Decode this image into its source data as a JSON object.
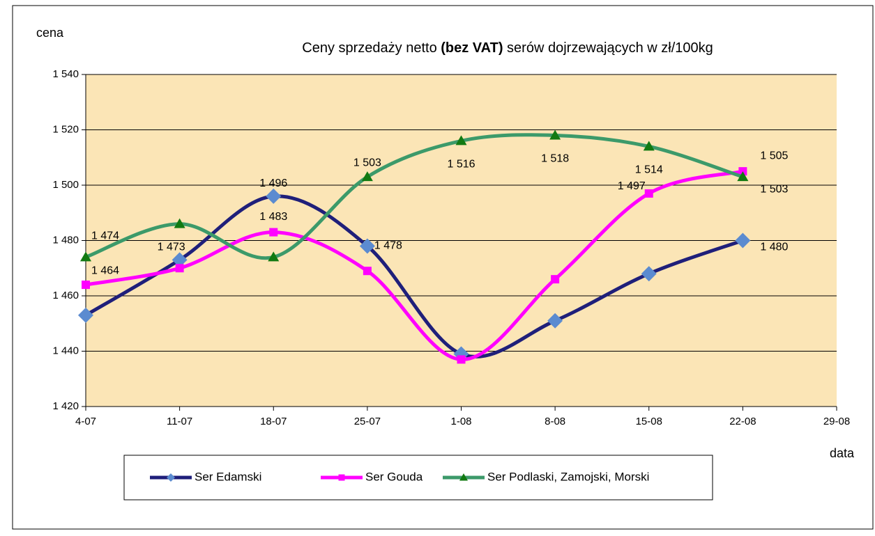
{
  "chart_data": {
    "type": "line",
    "title": [
      "Ceny sprzedaży netto ",
      "(bez VAT)",
      " serów dojrzewających  w zł/100kg"
    ],
    "y_label": "cena",
    "x_label": "data",
    "categories": [
      "4-07",
      "11-07",
      "18-07",
      "25-07",
      "1-08",
      "8-08",
      "15-08",
      "22-08",
      "29-08"
    ],
    "series": [
      {
        "name": "Ser Edamski",
        "color": "#1f1f7a",
        "marker_color": "#5b8bd0",
        "marker": "diamond",
        "values": [
          1453,
          1473,
          1496,
          1478,
          1439,
          1451,
          1468,
          1480,
          null
        ],
        "value_labels": [
          null,
          "1 473",
          "1 496",
          "1 478",
          null,
          null,
          null,
          "1 480",
          null
        ]
      },
      {
        "name": "Ser Gouda",
        "color": "#ff00ff",
        "marker_color": "#ff00ff",
        "marker": "square",
        "values": [
          1464,
          1470,
          1483,
          1469,
          1437,
          1466,
          1497,
          1505,
          null
        ],
        "value_labels": [
          "1 464",
          null,
          "1 483",
          null,
          null,
          null,
          "1 497",
          "1 505",
          null
        ]
      },
      {
        "name": "Ser Podlaski, Zamojski, Morski",
        "color": "#3c9a6a",
        "marker_color": "#127a12",
        "marker": "triangle",
        "values": [
          1474,
          1486,
          1474,
          1503,
          1516,
          1518,
          1514,
          1503,
          null
        ],
        "value_labels": [
          "1 474",
          null,
          null,
          "1 503",
          "1 516",
          "1 518",
          "1 514",
          "1 503",
          null
        ]
      }
    ],
    "ylim": [
      1420,
      1540
    ],
    "yticks": [
      {
        "value": 1420,
        "label": "1 420"
      },
      {
        "value": 1440,
        "label": "1 440"
      },
      {
        "value": 1460,
        "label": "1 460"
      },
      {
        "value": 1480,
        "label": "1 480"
      },
      {
        "value": 1500,
        "label": "1 500"
      },
      {
        "value": 1520,
        "label": "1 520"
      },
      {
        "value": 1540,
        "label": "1 540"
      }
    ],
    "grid": true,
    "plot_background": "#fbe5b6",
    "legend": "bottom"
  }
}
